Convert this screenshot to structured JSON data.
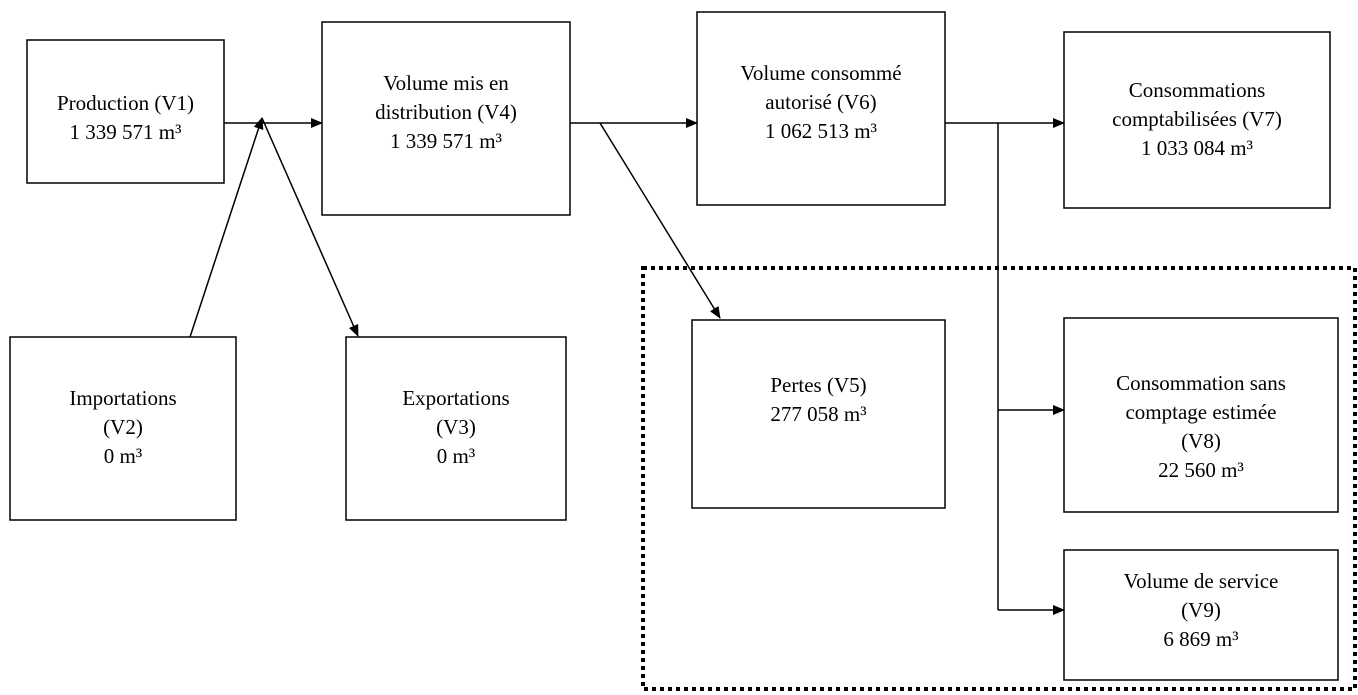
{
  "nodes": [
    {
      "lines": [
        "Production (V1)"
      ],
      "value": "1 339 571 m³"
    },
    {
      "lines": [
        "Volume mis en",
        "distribution (V4)"
      ],
      "value": "1 339 571 m³"
    },
    {
      "lines": [
        "Volume consommé",
        "autorisé (V6)"
      ],
      "value": "1 062 513 m³"
    },
    {
      "lines": [
        "Consommations",
        "comptabilisées (V7)"
      ],
      "value": "1 033 084 m³"
    },
    {
      "lines": [
        "Importations",
        "(V2)"
      ],
      "value": "0 m³"
    },
    {
      "lines": [
        "Exportations",
        "(V3)"
      ],
      "value": "0 m³"
    },
    {
      "lines": [
        "Pertes (V5)"
      ],
      "value": "277 058 m³"
    },
    {
      "lines": [
        "Consommation sans",
        "comptage estimée",
        "(V8)"
      ],
      "value": "22 560 m³"
    },
    {
      "lines": [
        "Volume de service",
        "(V9)"
      ],
      "value": "6 869 m³"
    }
  ]
}
